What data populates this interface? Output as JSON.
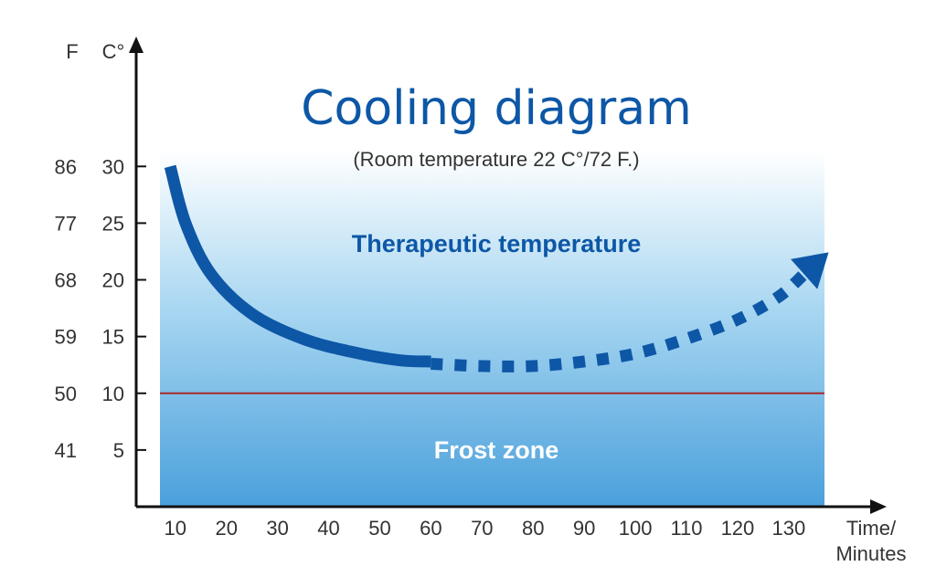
{
  "chart_data": {
    "type": "line",
    "title": "Cooling diagram",
    "subtitle": "(Room temperature 22 C°/72 F.)",
    "x_label": "Time/\nMinutes",
    "y_label_celsius": "C°",
    "y_label_fahrenheit": "F",
    "x_ticks": [
      10,
      20,
      30,
      40,
      50,
      60,
      70,
      80,
      90,
      100,
      110,
      120,
      130
    ],
    "y_ticks_celsius": [
      5,
      10,
      15,
      20,
      25,
      30
    ],
    "y_ticks_fahrenheit": [
      41,
      50,
      59,
      68,
      77,
      86
    ],
    "xlim": [
      7,
      137
    ],
    "ylim": [
      0,
      33
    ],
    "frost_threshold": 10,
    "zones": {
      "upper_label": "Therapeutic temperature",
      "lower_label": "Frost zone"
    },
    "series": [
      {
        "style": "solid",
        "x": [
          9,
          12,
          17,
          25,
          35,
          45,
          54,
          60
        ],
        "y": [
          30,
          25,
          20.5,
          17,
          14.8,
          13.6,
          12.9,
          12.8
        ]
      },
      {
        "style": "dashed",
        "x": [
          60,
          70,
          80,
          90,
          100,
          110,
          120,
          128,
          133
        ],
        "y": [
          12.6,
          12.4,
          12.4,
          12.8,
          13.5,
          14.8,
          16.5,
          18.5,
          20.5
        ]
      }
    ],
    "grid": false,
    "legend": "none"
  },
  "colors": {
    "curve": "#0d57a6",
    "title": "#0d57a6",
    "threshold": "#a82a2a",
    "zone_top": "#ffffff",
    "zone_mid": "#a7d6f1",
    "zone_bottom": "#4aa0dc",
    "frost_text": "#ffffff",
    "axis": "#111111"
  }
}
